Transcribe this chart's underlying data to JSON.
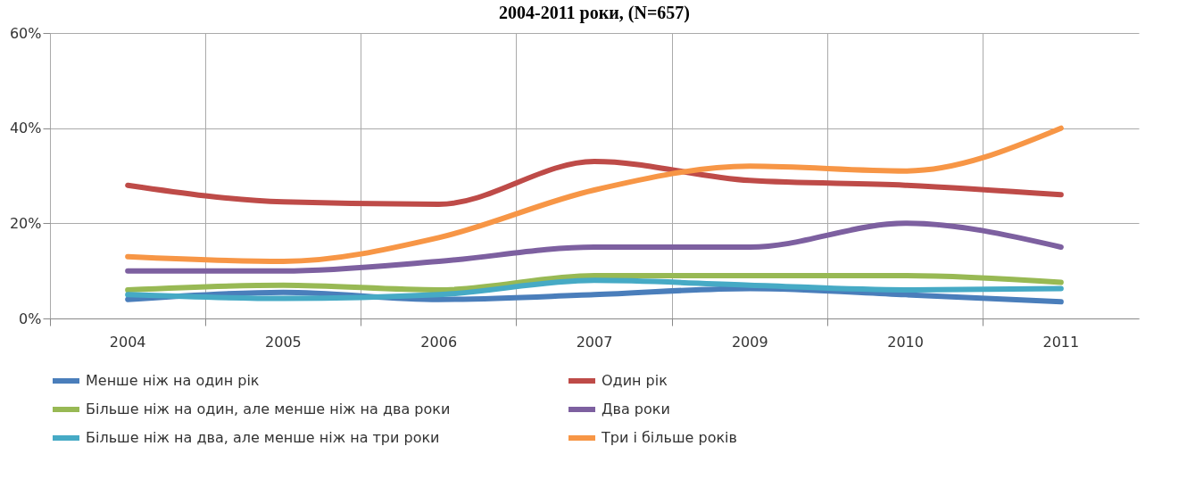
{
  "chart_data": {
    "type": "line",
    "title": "2004-2011 роки, (N=657)",
    "categories": [
      "2004",
      "2005",
      "2006",
      "2007",
      "2009",
      "2010",
      "2011"
    ],
    "ylim": [
      0,
      60
    ],
    "yticks": [
      {
        "value": 0,
        "label": "0%"
      },
      {
        "value": 20,
        "label": "20%"
      },
      {
        "value": 40,
        "label": "40%"
      },
      {
        "value": 60,
        "label": "60%"
      }
    ],
    "grid": true,
    "legend": "bottom",
    "series": [
      {
        "name": "Менше ніж на один рік",
        "color": "#4a7ebb",
        "values": [
          4,
          5.5,
          4,
          5,
          6.3,
          5,
          3.5
        ]
      },
      {
        "name": "Один рік",
        "color": "#be4b48",
        "values": [
          28,
          24.5,
          24,
          33,
          29,
          28,
          26
        ]
      },
      {
        "name": "Більше ніж на один, але менше ніж на два роки",
        "color": "#98b954",
        "values": [
          6,
          7,
          6,
          9,
          9,
          9,
          7.6
        ]
      },
      {
        "name": "Два роки",
        "color": "#7d60a0",
        "values": [
          10,
          10,
          12,
          15,
          15,
          20,
          15
        ]
      },
      {
        "name": "Більше ніж на два, але менше ніж на три роки",
        "color": "#46aac5",
        "values": [
          5,
          4.2,
          5,
          8,
          7,
          6,
          6.3
        ]
      },
      {
        "name": "Три і більше років",
        "color": "#f79646",
        "values": [
          13,
          12,
          17,
          27,
          32,
          31,
          40
        ]
      }
    ]
  }
}
